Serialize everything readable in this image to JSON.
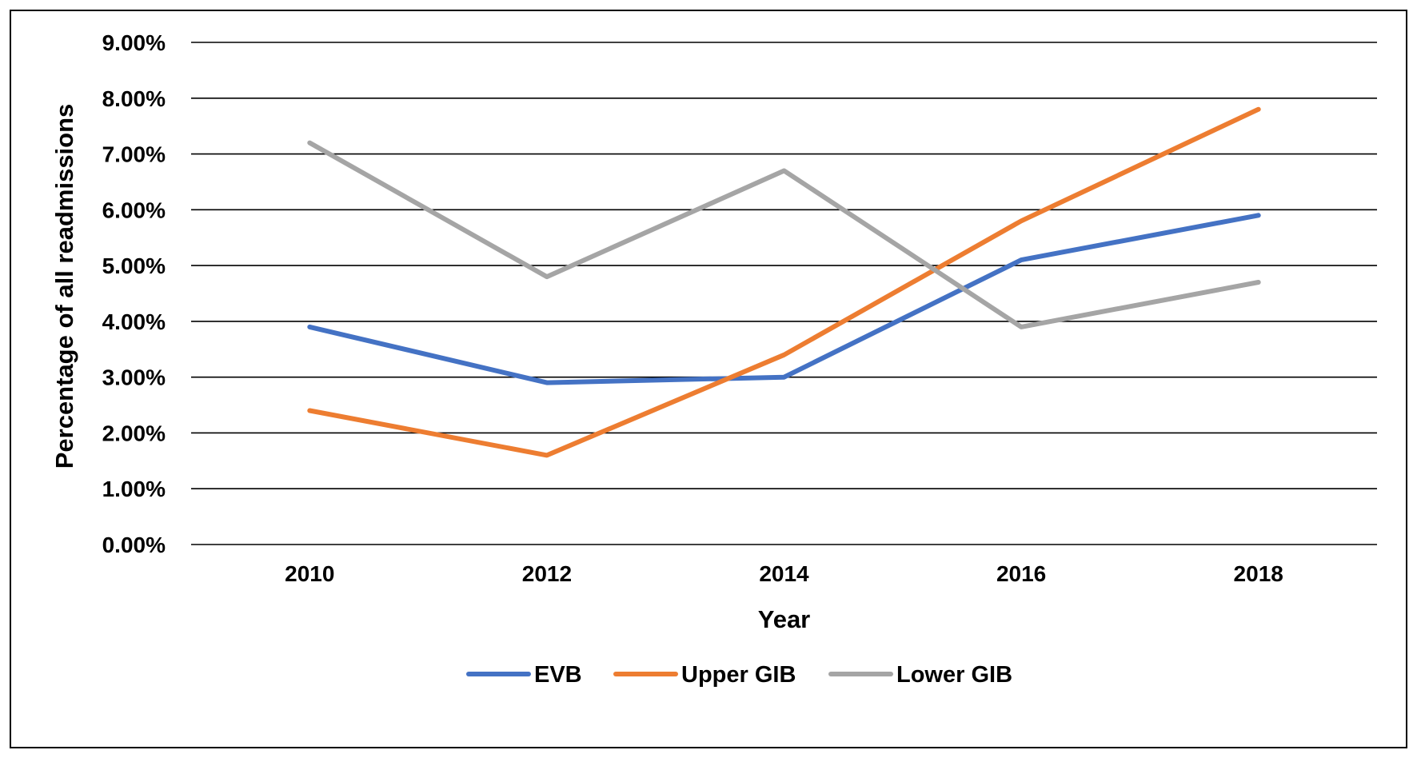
{
  "chart_data": {
    "type": "line",
    "title": "",
    "xlabel": "Year",
    "ylabel": "Percentage of all readmissions",
    "categories": [
      "2010",
      "2012",
      "2014",
      "2016",
      "2018"
    ],
    "ylim": [
      0,
      9
    ],
    "yticks": [
      0,
      1,
      2,
      3,
      4,
      5,
      6,
      7,
      8,
      9
    ],
    "ytick_labels": [
      "0.00%",
      "1.00%",
      "2.00%",
      "3.00%",
      "4.00%",
      "5.00%",
      "6.00%",
      "7.00%",
      "8.00%",
      "9.00%"
    ],
    "y_unit": "%",
    "grid": "horizontal",
    "legend_position": "bottom",
    "series": [
      {
        "name": "EVB",
        "color": "#4472C4",
        "values": [
          3.9,
          2.9,
          3.0,
          5.1,
          5.9
        ]
      },
      {
        "name": "Upper GIB",
        "color": "#ED7D31",
        "values": [
          2.4,
          1.6,
          3.4,
          5.8,
          7.8
        ]
      },
      {
        "name": "Lower GIB",
        "color": "#A5A5A5",
        "values": [
          7.2,
          4.8,
          6.7,
          3.9,
          4.7
        ]
      }
    ]
  }
}
